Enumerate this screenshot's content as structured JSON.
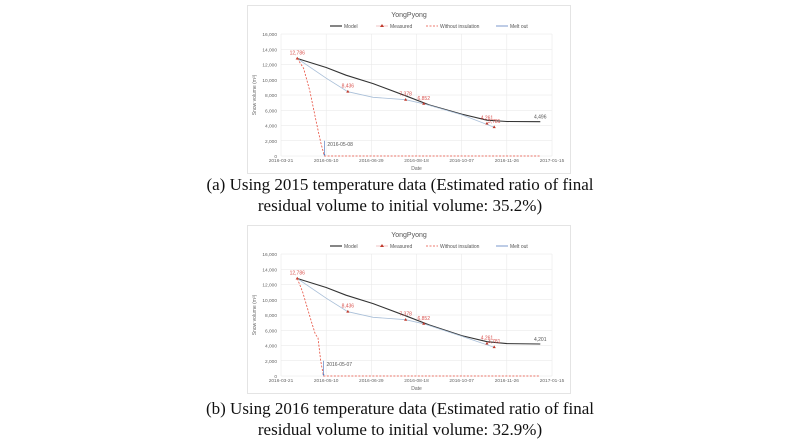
{
  "chart_data": [
    {
      "type": "line",
      "title": "YongPyong",
      "xlabel": "Date",
      "ylabel": "Snow volume (m³)",
      "xlim": [
        "2016-03-21",
        "2017-01-15"
      ],
      "ylim": [
        0,
        16000
      ],
      "x_ticks": [
        "2016-03-21",
        "2016-05-10",
        "2016-06-29",
        "2016-08-18",
        "2016-10-07",
        "2016-11-26",
        "2017-01-15"
      ],
      "y_ticks": [
        "0",
        "2,000",
        "4,000",
        "6,000",
        "8,000",
        "10,000",
        "12,000",
        "14,000",
        "16,000"
      ],
      "grid": true,
      "legend": "top",
      "series": [
        {
          "name": "Model",
          "color": "#333333",
          "style": "solid",
          "points": [
            [
              "2016-04-08",
              12786
            ],
            [
              "2016-05-10",
              11600
            ],
            [
              "2016-06-01",
              10600
            ],
            [
              "2016-07-01",
              9500
            ],
            [
              "2016-08-06",
              7900
            ],
            [
              "2016-09-01",
              6700
            ],
            [
              "2016-10-07",
              5500
            ],
            [
              "2016-11-04",
              4700
            ],
            [
              "2016-11-26",
              4520
            ],
            [
              "2017-01-02",
              4496
            ]
          ]
        },
        {
          "name": "Measured",
          "color": "#c0392b",
          "style": "marker",
          "points": [
            [
              "2016-04-08",
              12786
            ],
            [
              "2016-06-03",
              8436
            ],
            [
              "2016-08-06",
              7378
            ],
            [
              "2016-08-26",
              6852
            ],
            [
              "2016-11-04",
              4261
            ],
            [
              "2016-11-12",
              3781
            ]
          ],
          "labels": [
            "12,786",
            "8,436",
            "7,378",
            "6,852",
            "4,261",
            "3,781"
          ],
          "fit": [
            [
              "2016-04-08",
              12786
            ],
            [
              "2016-05-10",
              10200
            ],
            [
              "2016-06-03",
              8436
            ],
            [
              "2016-07-01",
              7700
            ],
            [
              "2016-08-06",
              7378
            ],
            [
              "2016-08-26",
              6852
            ],
            [
              "2016-10-07",
              5400
            ],
            [
              "2016-11-12",
              3781
            ]
          ]
        },
        {
          "name": "Without insulation",
          "color": "#e74c3c",
          "style": "dashed",
          "points": [
            [
              "2016-04-08",
              12786
            ],
            [
              "2016-04-15",
              11500
            ],
            [
              "2016-04-22",
              8500
            ],
            [
              "2016-04-29",
              4500
            ],
            [
              "2016-05-04",
              1800
            ],
            [
              "2016-05-08",
              0
            ],
            [
              "2017-01-02",
              0
            ]
          ]
        },
        {
          "name": "Melt out",
          "color": "#5b7fc0",
          "style": "arrow",
          "points": [
            [
              "2016-05-08",
              2000
            ],
            [
              "2016-05-08",
              0
            ]
          ]
        }
      ],
      "annotations": {
        "melt_out_date": "2016-05-08",
        "final_value": "4,496"
      }
    },
    {
      "type": "line",
      "title": "YongPyong",
      "xlabel": "Date",
      "ylabel": "Snow volume (m³)",
      "xlim": [
        "2016-03-21",
        "2017-01-15"
      ],
      "ylim": [
        0,
        16000
      ],
      "x_ticks": [
        "2016-03-21",
        "2016-05-10",
        "2016-06-29",
        "2016-08-18",
        "2016-10-07",
        "2016-11-26",
        "2017-01-15"
      ],
      "y_ticks": [
        "0",
        "2,000",
        "4,000",
        "6,000",
        "8,000",
        "10,000",
        "12,000",
        "14,000",
        "16,000"
      ],
      "grid": true,
      "legend": "top",
      "series": [
        {
          "name": "Model",
          "color": "#333333",
          "style": "solid",
          "points": [
            [
              "2016-04-08",
              12786
            ],
            [
              "2016-05-10",
              11600
            ],
            [
              "2016-06-01",
              10600
            ],
            [
              "2016-07-01",
              9500
            ],
            [
              "2016-08-06",
              7900
            ],
            [
              "2016-09-01",
              6700
            ],
            [
              "2016-10-07",
              5300
            ],
            [
              "2016-11-04",
              4500
            ],
            [
              "2016-11-26",
              4250
            ],
            [
              "2017-01-02",
              4201
            ]
          ]
        },
        {
          "name": "Measured",
          "color": "#c0392b",
          "style": "marker",
          "points": [
            [
              "2016-04-08",
              12786
            ],
            [
              "2016-06-03",
              8436
            ],
            [
              "2016-08-06",
              7378
            ],
            [
              "2016-08-26",
              6852
            ],
            [
              "2016-11-04",
              4261
            ],
            [
              "2016-11-12",
              3781
            ]
          ],
          "labels": [
            "12,786",
            "8,436",
            "7,378",
            "6,852",
            "4,261",
            "3,781"
          ],
          "fit": [
            [
              "2016-04-08",
              12786
            ],
            [
              "2016-05-10",
              10200
            ],
            [
              "2016-06-03",
              8436
            ],
            [
              "2016-07-01",
              7700
            ],
            [
              "2016-08-06",
              7378
            ],
            [
              "2016-08-26",
              6852
            ],
            [
              "2016-10-07",
              5200
            ],
            [
              "2016-11-12",
              3781
            ]
          ]
        },
        {
          "name": "Without insulation",
          "color": "#e74c3c",
          "style": "dashed",
          "points": [
            [
              "2016-04-08",
              12786
            ],
            [
              "2016-04-14",
              11000
            ],
            [
              "2016-04-19",
              9000
            ],
            [
              "2016-04-24",
              7000
            ],
            [
              "2016-04-28",
              5500
            ],
            [
              "2016-05-01",
              5000
            ],
            [
              "2016-05-04",
              2000
            ],
            [
              "2016-05-07",
              0
            ],
            [
              "2017-01-02",
              0
            ]
          ]
        },
        {
          "name": "Melt out",
          "color": "#5b7fc0",
          "style": "arrow",
          "points": [
            [
              "2016-05-07",
              2000
            ],
            [
              "2016-05-07",
              0
            ]
          ]
        }
      ],
      "annotations": {
        "melt_out_date": "2016-05-07",
        "final_value": "4,201"
      }
    }
  ],
  "captions": [
    {
      "line1": "(a) Using 2015 temperature data (Estimated ratio of final",
      "line2": "residual volume to initial volume: 35.2%)"
    },
    {
      "line1": "(b) Using 2016 temperature data (Estimated ratio of final",
      "line2": "residual volume to initial volume: 32.9%)"
    }
  ]
}
